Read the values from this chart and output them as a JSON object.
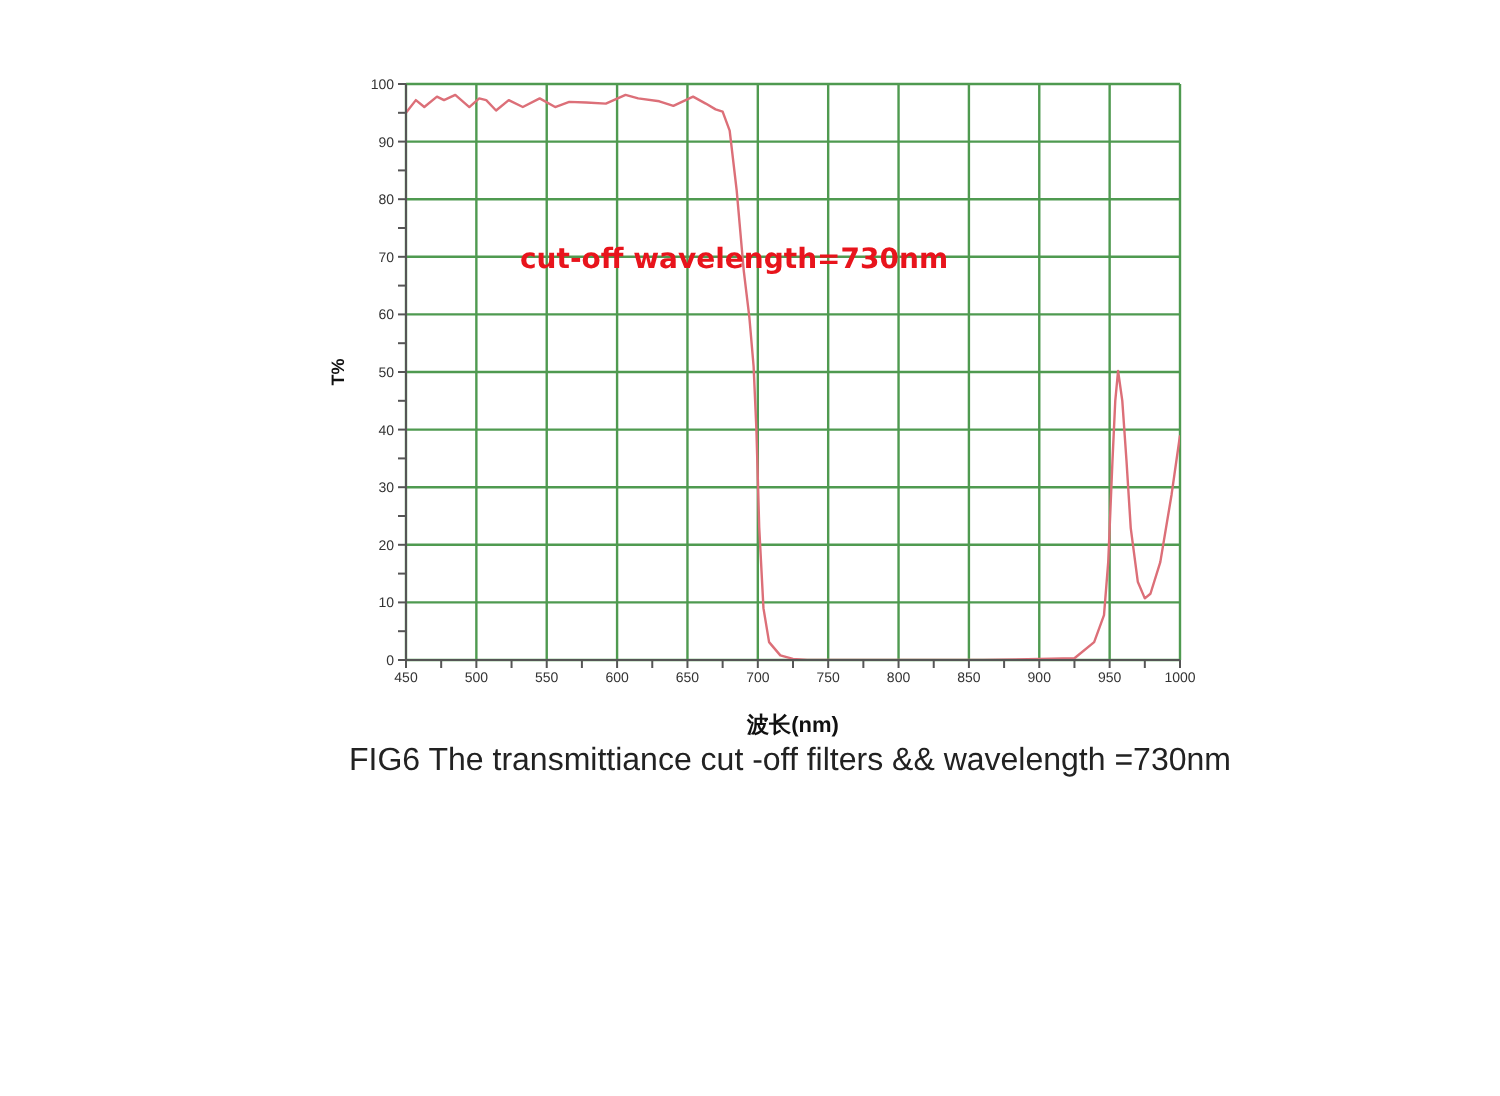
{
  "chart_data": {
    "type": "line",
    "xlabel": "波长(nm)",
    "ylabel": "T%",
    "annotations": [
      "cut-off wavelength=730nm",
      "FIG6 The transmittiance cut -off filters && wavelength =730nm"
    ],
    "series": [
      {
        "color": "#dc6f78",
        "x": [
          450,
          457,
          463,
          472,
          477,
          485,
          495,
          502,
          507,
          514,
          523,
          533,
          545,
          556,
          566,
          578,
          592,
          606,
          615,
          630,
          640,
          654,
          663,
          670,
          675,
          680,
          685,
          690,
          694,
          697,
          699,
          701,
          704,
          708,
          716,
          725,
          735,
          800,
          860,
          925,
          939,
          946,
          949,
          952,
          954,
          956,
          959,
          962,
          965,
          970,
          975,
          979,
          986,
          994,
          1000
        ],
        "values": [
          95,
          97.2,
          96,
          97.8,
          97.2,
          98.1,
          96,
          97.5,
          97.2,
          95.4,
          97.2,
          96,
          97.5,
          96,
          96.9,
          96.8,
          96.6,
          98.1,
          97.5,
          97,
          96.2,
          97.8,
          96.6,
          95.6,
          95.2,
          91.9,
          81.5,
          67.6,
          59.5,
          51,
          40,
          23,
          9,
          3.1,
          0.8,
          0.2,
          0,
          0,
          0,
          0.3,
          3.1,
          7.8,
          17,
          34.5,
          45,
          50.2,
          45,
          34.5,
          22.9,
          13.6,
          10.7,
          11.5,
          17,
          28.7,
          39
        ]
      }
    ],
    "xlim": [
      450,
      1000
    ],
    "xticks": [
      450,
      {
        "value": 475,
        "label": null
      },
      500,
      {
        "value": 525,
        "label": null
      },
      550,
      {
        "value": 575,
        "label": null
      },
      600,
      {
        "value": 625,
        "label": null
      },
      650,
      {
        "value": 675,
        "label": null
      },
      700,
      {
        "value": 725,
        "label": null
      },
      750,
      {
        "value": 775,
        "label": null
      },
      800,
      {
        "value": 825,
        "label": null
      },
      850,
      {
        "value": 875,
        "label": null
      },
      900,
      {
        "value": 925,
        "label": null
      },
      950,
      {
        "value": 975,
        "label": null
      },
      1000
    ],
    "ylim": [
      0,
      100
    ],
    "yticks": [
      0,
      {
        "value": 5,
        "label": null
      },
      10,
      {
        "value": 15,
        "label": null
      },
      20,
      {
        "value": 25,
        "label": null
      },
      30,
      {
        "value": 35,
        "label": null
      },
      40,
      {
        "value": 45,
        "label": null
      },
      50,
      {
        "value": 55,
        "label": null
      },
      60,
      {
        "value": 65,
        "label": null
      },
      70,
      {
        "value": 75,
        "label": null
      },
      80,
      {
        "value": 85,
        "label": null
      },
      90,
      {
        "value": 95,
        "label": null
      },
      100
    ],
    "grid": true
  }
}
